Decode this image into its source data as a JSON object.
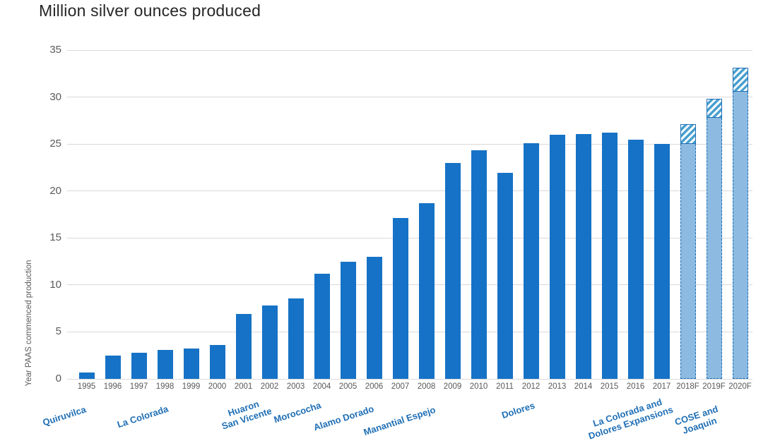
{
  "chart_data": {
    "type": "bar",
    "title": "Million silver ounces produced",
    "xlabel": "",
    "ylabel": "Year PAAS commenced production",
    "ylim": [
      0,
      35
    ],
    "yticks": [
      0,
      5,
      10,
      15,
      20,
      25,
      30,
      35
    ],
    "grid": true,
    "legend": false,
    "categories": [
      "1995",
      "1996",
      "1997",
      "1998",
      "1999",
      "2000",
      "2001",
      "2002",
      "2003",
      "2004",
      "2005",
      "2006",
      "2007",
      "2008",
      "2009",
      "2010",
      "2011",
      "2012",
      "2013",
      "2014",
      "2015",
      "2016",
      "2017",
      "2018F",
      "2019F",
      "2020F"
    ],
    "series": [
      {
        "name": "actual-production",
        "style": "solid-dark-blue",
        "values": [
          0.7,
          2.5,
          2.8,
          3.1,
          3.2,
          3.6,
          6.9,
          7.8,
          8.6,
          11.2,
          12.5,
          13.0,
          17.1,
          18.7,
          23.0,
          24.3,
          21.9,
          25.1,
          26.0,
          26.1,
          26.2,
          25.5,
          25.0,
          null,
          null,
          null
        ]
      },
      {
        "name": "forecast-base",
        "style": "light-blue-dashed-border",
        "values": [
          null,
          null,
          null,
          null,
          null,
          null,
          null,
          null,
          null,
          null,
          null,
          null,
          null,
          null,
          null,
          null,
          null,
          null,
          null,
          null,
          null,
          null,
          null,
          25.0,
          27.8,
          30.6
        ]
      },
      {
        "name": "forecast-incremental",
        "style": "hatched-stacked-on-forecast-base",
        "values": [
          null,
          null,
          null,
          null,
          null,
          null,
          null,
          null,
          null,
          null,
          null,
          null,
          null,
          null,
          null,
          null,
          null,
          null,
          null,
          null,
          null,
          null,
          null,
          2.1,
          2.0,
          2.5
        ]
      }
    ],
    "mine_annotations": [
      "Quiruvilca",
      "La Colorada",
      "Huaron\nSan Vicente",
      "Morococha",
      "Alamo Dorado",
      "Manantial  Espejo",
      "Dolores",
      "La Colorada and\nDolores Expansions",
      "COSE and\nJoaquin"
    ],
    "colors": {
      "actual_bar": "#1672C6",
      "forecast_fill": "#8CBAE0",
      "forecast_border": "#1E6FB5",
      "hatch_stripe": "#49A0CF",
      "gridline": "#D9D9D9",
      "axis_text": "#595959",
      "title_text": "#262626",
      "annotation_text": "#1F6FB5"
    }
  }
}
